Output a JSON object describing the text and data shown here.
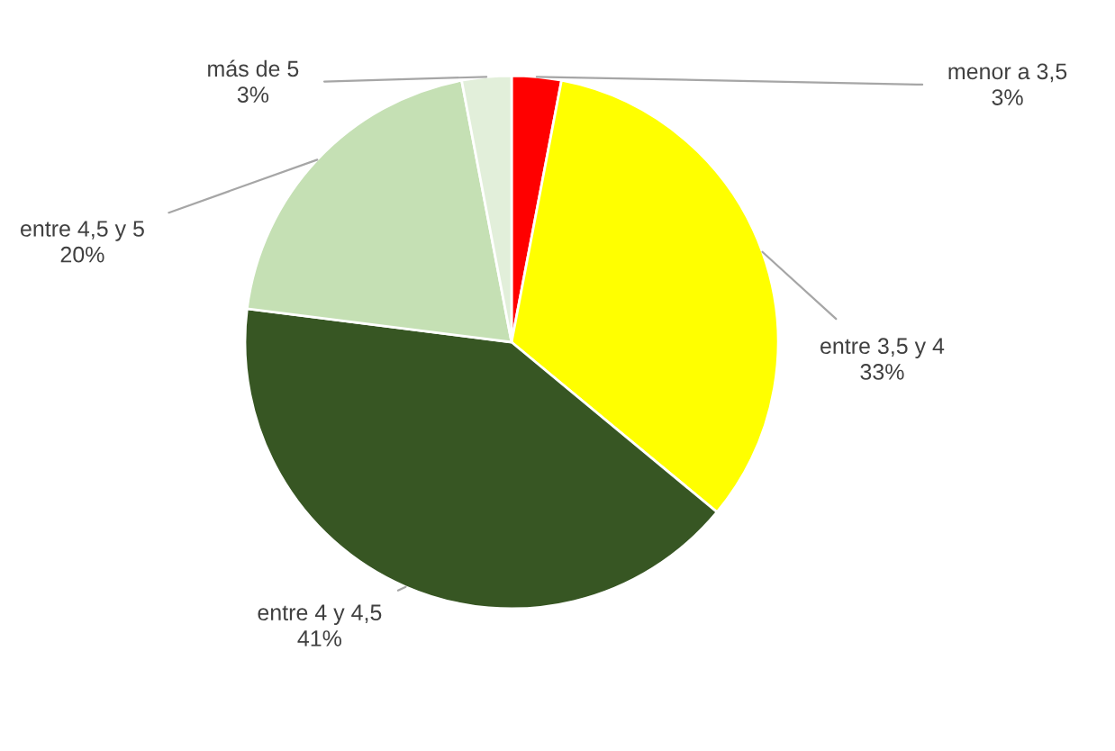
{
  "chart_data": {
    "type": "pie",
    "categories": [
      "menor a 3,5",
      "entre 3,5 y 4",
      "entre 4 y 4,5",
      "entre 4,5 y 5",
      "más de 5"
    ],
    "values": [
      3,
      33,
      41,
      20,
      3
    ],
    "colors": [
      "#ff0000",
      "#ffff00",
      "#375623",
      "#c5e0b4",
      "#e2efda"
    ],
    "value_labels": [
      "3%",
      "33%",
      "41%",
      "20%",
      "3%"
    ],
    "legend": false
  }
}
